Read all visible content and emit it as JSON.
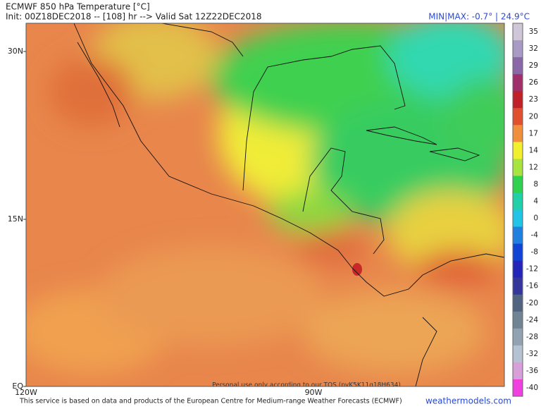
{
  "header": {
    "title": "ECMWF 850 hPa Temperature [°C]",
    "subtitle": "Init: 00Z18DEC2018 -- [108] hr --> Valid Sat 12Z22DEC2018",
    "minmax": "MIN|MAX: -0.7° | 24.9°C"
  },
  "map": {
    "lat_labels": [
      "30N",
      "15N",
      "EQ"
    ],
    "lon_labels": [
      "120W",
      "90W"
    ],
    "watermark": "Personal use only according to our TOS (pvK5K11q18H634)"
  },
  "colorbar": [
    {
      "label": "35",
      "color": "#cfc6d8"
    },
    {
      "label": "32",
      "color": "#a89ac4"
    },
    {
      "label": "29",
      "color": "#8a68a8"
    },
    {
      "label": "26",
      "color": "#a0306a"
    },
    {
      "label": "23",
      "color": "#c02028"
    },
    {
      "label": "20",
      "color": "#e0502e"
    },
    {
      "label": "17",
      "color": "#f0903c"
    },
    {
      "label": "14",
      "color": "#f2ee30"
    },
    {
      "label": "12",
      "color": "#a8e440"
    },
    {
      "label": "8",
      "color": "#30d050"
    },
    {
      "label": "4",
      "color": "#20d0a8"
    },
    {
      "label": "0",
      "color": "#20c4e4"
    },
    {
      "label": "-4",
      "color": "#2080e0"
    },
    {
      "label": "-8",
      "color": "#1044d4"
    },
    {
      "label": "-12",
      "color": "#2424b8"
    },
    {
      "label": "-16",
      "color": "#34369c"
    },
    {
      "label": "-20",
      "color": "#506482"
    },
    {
      "label": "-24",
      "color": "#708494"
    },
    {
      "label": "-28",
      "color": "#92a2b2"
    },
    {
      "label": "-32",
      "color": "#b4c2d2"
    },
    {
      "label": "-36",
      "color": "#d8a0d8"
    },
    {
      "label": "-40",
      "color": "#f040e0"
    }
  ],
  "footer": {
    "credit": "This service is based on data and products of the European Centre for Medium-range Weather Forecasts (ECMWF)",
    "site": "weathermodels.com"
  }
}
